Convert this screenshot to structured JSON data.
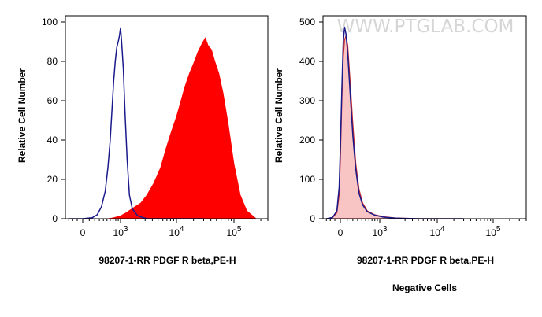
{
  "watermark": "WWW.PTGLAB.COM",
  "colors": {
    "positive_fill": "#ff0000",
    "negative_fill": "#f9c4c4",
    "negative_outline": "#cc2a2a",
    "control_line": "#1a1a8c",
    "watermark": "#d6d6d6"
  },
  "chart_data": [
    {
      "type": "area",
      "panel": "left",
      "title": "",
      "xlabel": "98207-1-RR PDGF R beta,PE-H",
      "ylabel": "Relative Cell Number",
      "x_scale": "biexponential",
      "xlim": [
        -400,
        400000
      ],
      "ylim": [
        0,
        100
      ],
      "y_ticks": [
        0,
        20,
        40,
        60,
        80,
        100
      ],
      "x_tick_labels": [
        {
          "base": "0",
          "exp": ""
        },
        {
          "base": "10",
          "exp": "3"
        },
        {
          "base": "10",
          "exp": "4"
        },
        {
          "base": "10",
          "exp": "5"
        }
      ],
      "grid": false,
      "series": [
        {
          "role": "sample",
          "style": "filled",
          "color": "#ff0000",
          "points": [
            [
              500,
              0
            ],
            [
              700,
              0.5
            ],
            [
              1000,
              1.5
            ],
            [
              1300,
              3
            ],
            [
              1800,
              5.5
            ],
            [
              2500,
              8
            ],
            [
              3200,
              12
            ],
            [
              4200,
              18
            ],
            [
              5500,
              26
            ],
            [
              6800,
              36
            ],
            [
              8200,
              44
            ],
            [
              10000,
              52
            ],
            [
              12000,
              60
            ],
            [
              14000,
              67
            ],
            [
              17000,
              74
            ],
            [
              20000,
              79
            ],
            [
              24000,
              85
            ],
            [
              28000,
              89
            ],
            [
              32000,
              92
            ],
            [
              36000,
              88
            ],
            [
              41000,
              86
            ],
            [
              47000,
              80
            ],
            [
              55000,
              74
            ],
            [
              65000,
              64
            ],
            [
              80000,
              48
            ],
            [
              100000,
              28
            ],
            [
              130000,
              12
            ],
            [
              170000,
              4
            ],
            [
              250000,
              0
            ]
          ]
        },
        {
          "role": "control",
          "style": "line",
          "color": "#1a1a8c",
          "points": [
            [
              -300,
              0
            ],
            [
              0,
              0
            ],
            [
              150,
              0.5
            ],
            [
              250,
              2
            ],
            [
              350,
              6
            ],
            [
              450,
              14
            ],
            [
              530,
              26
            ],
            [
              600,
              40
            ],
            [
              660,
              55
            ],
            [
              720,
              70
            ],
            [
              780,
              80
            ],
            [
              840,
              87
            ],
            [
              900,
              90
            ],
            [
              950,
              93
            ],
            [
              1000,
              97
            ],
            [
              1050,
              91
            ],
            [
              1150,
              76
            ],
            [
              1250,
              54
            ],
            [
              1380,
              30
            ],
            [
              1530,
              12
            ],
            [
              1750,
              5
            ],
            [
              2200,
              1.5
            ],
            [
              3200,
              0
            ],
            [
              30000,
              0
            ]
          ]
        }
      ]
    },
    {
      "type": "area",
      "panel": "right",
      "title": "Negative Cells",
      "xlabel": "98207-1-RR PDGF R beta,PE-H",
      "ylabel": "Relative Cell Number",
      "x_scale": "biexponential",
      "xlim": [
        -400,
        400000
      ],
      "ylim": [
        0,
        500
      ],
      "y_ticks": [
        0,
        100,
        200,
        300,
        400,
        500
      ],
      "x_tick_labels": [
        {
          "base": "0",
          "exp": ""
        },
        {
          "base": "10",
          "exp": "3"
        },
        {
          "base": "10",
          "exp": "4"
        },
        {
          "base": "10",
          "exp": "5"
        }
      ],
      "grid": false,
      "series": [
        {
          "role": "sample",
          "style": "filled",
          "color": "#f9c4c4",
          "outline": "#cc2a2a",
          "points": [
            [
              -300,
              0
            ],
            [
              -150,
              3
            ],
            [
              -60,
              15
            ],
            [
              -20,
              60
            ],
            [
              0,
              150
            ],
            [
              20,
              300
            ],
            [
              40,
              410
            ],
            [
              60,
              455
            ],
            [
              80,
              465
            ],
            [
              110,
              440
            ],
            [
              150,
              350
            ],
            [
              200,
              240
            ],
            [
              260,
              140
            ],
            [
              330,
              75
            ],
            [
              420,
              40
            ],
            [
              550,
              20
            ],
            [
              800,
              10
            ],
            [
              1200,
              5
            ],
            [
              2000,
              2
            ],
            [
              5000,
              0
            ],
            [
              30000,
              0
            ]
          ]
        },
        {
          "role": "control",
          "style": "line",
          "color": "#1a1a8c",
          "points": [
            [
              -300,
              0
            ],
            [
              -150,
              3
            ],
            [
              -60,
              20
            ],
            [
              -20,
              80
            ],
            [
              0,
              180
            ],
            [
              20,
              330
            ],
            [
              40,
              450
            ],
            [
              60,
              487
            ],
            [
              80,
              470
            ],
            [
              110,
              420
            ],
            [
              150,
              320
            ],
            [
              200,
              210
            ],
            [
              260,
              125
            ],
            [
              330,
              65
            ],
            [
              420,
              35
            ],
            [
              550,
              18
            ],
            [
              800,
              9
            ],
            [
              1200,
              4
            ],
            [
              2000,
              1.5
            ],
            [
              5000,
              0
            ],
            [
              30000,
              0
            ]
          ]
        }
      ]
    }
  ]
}
